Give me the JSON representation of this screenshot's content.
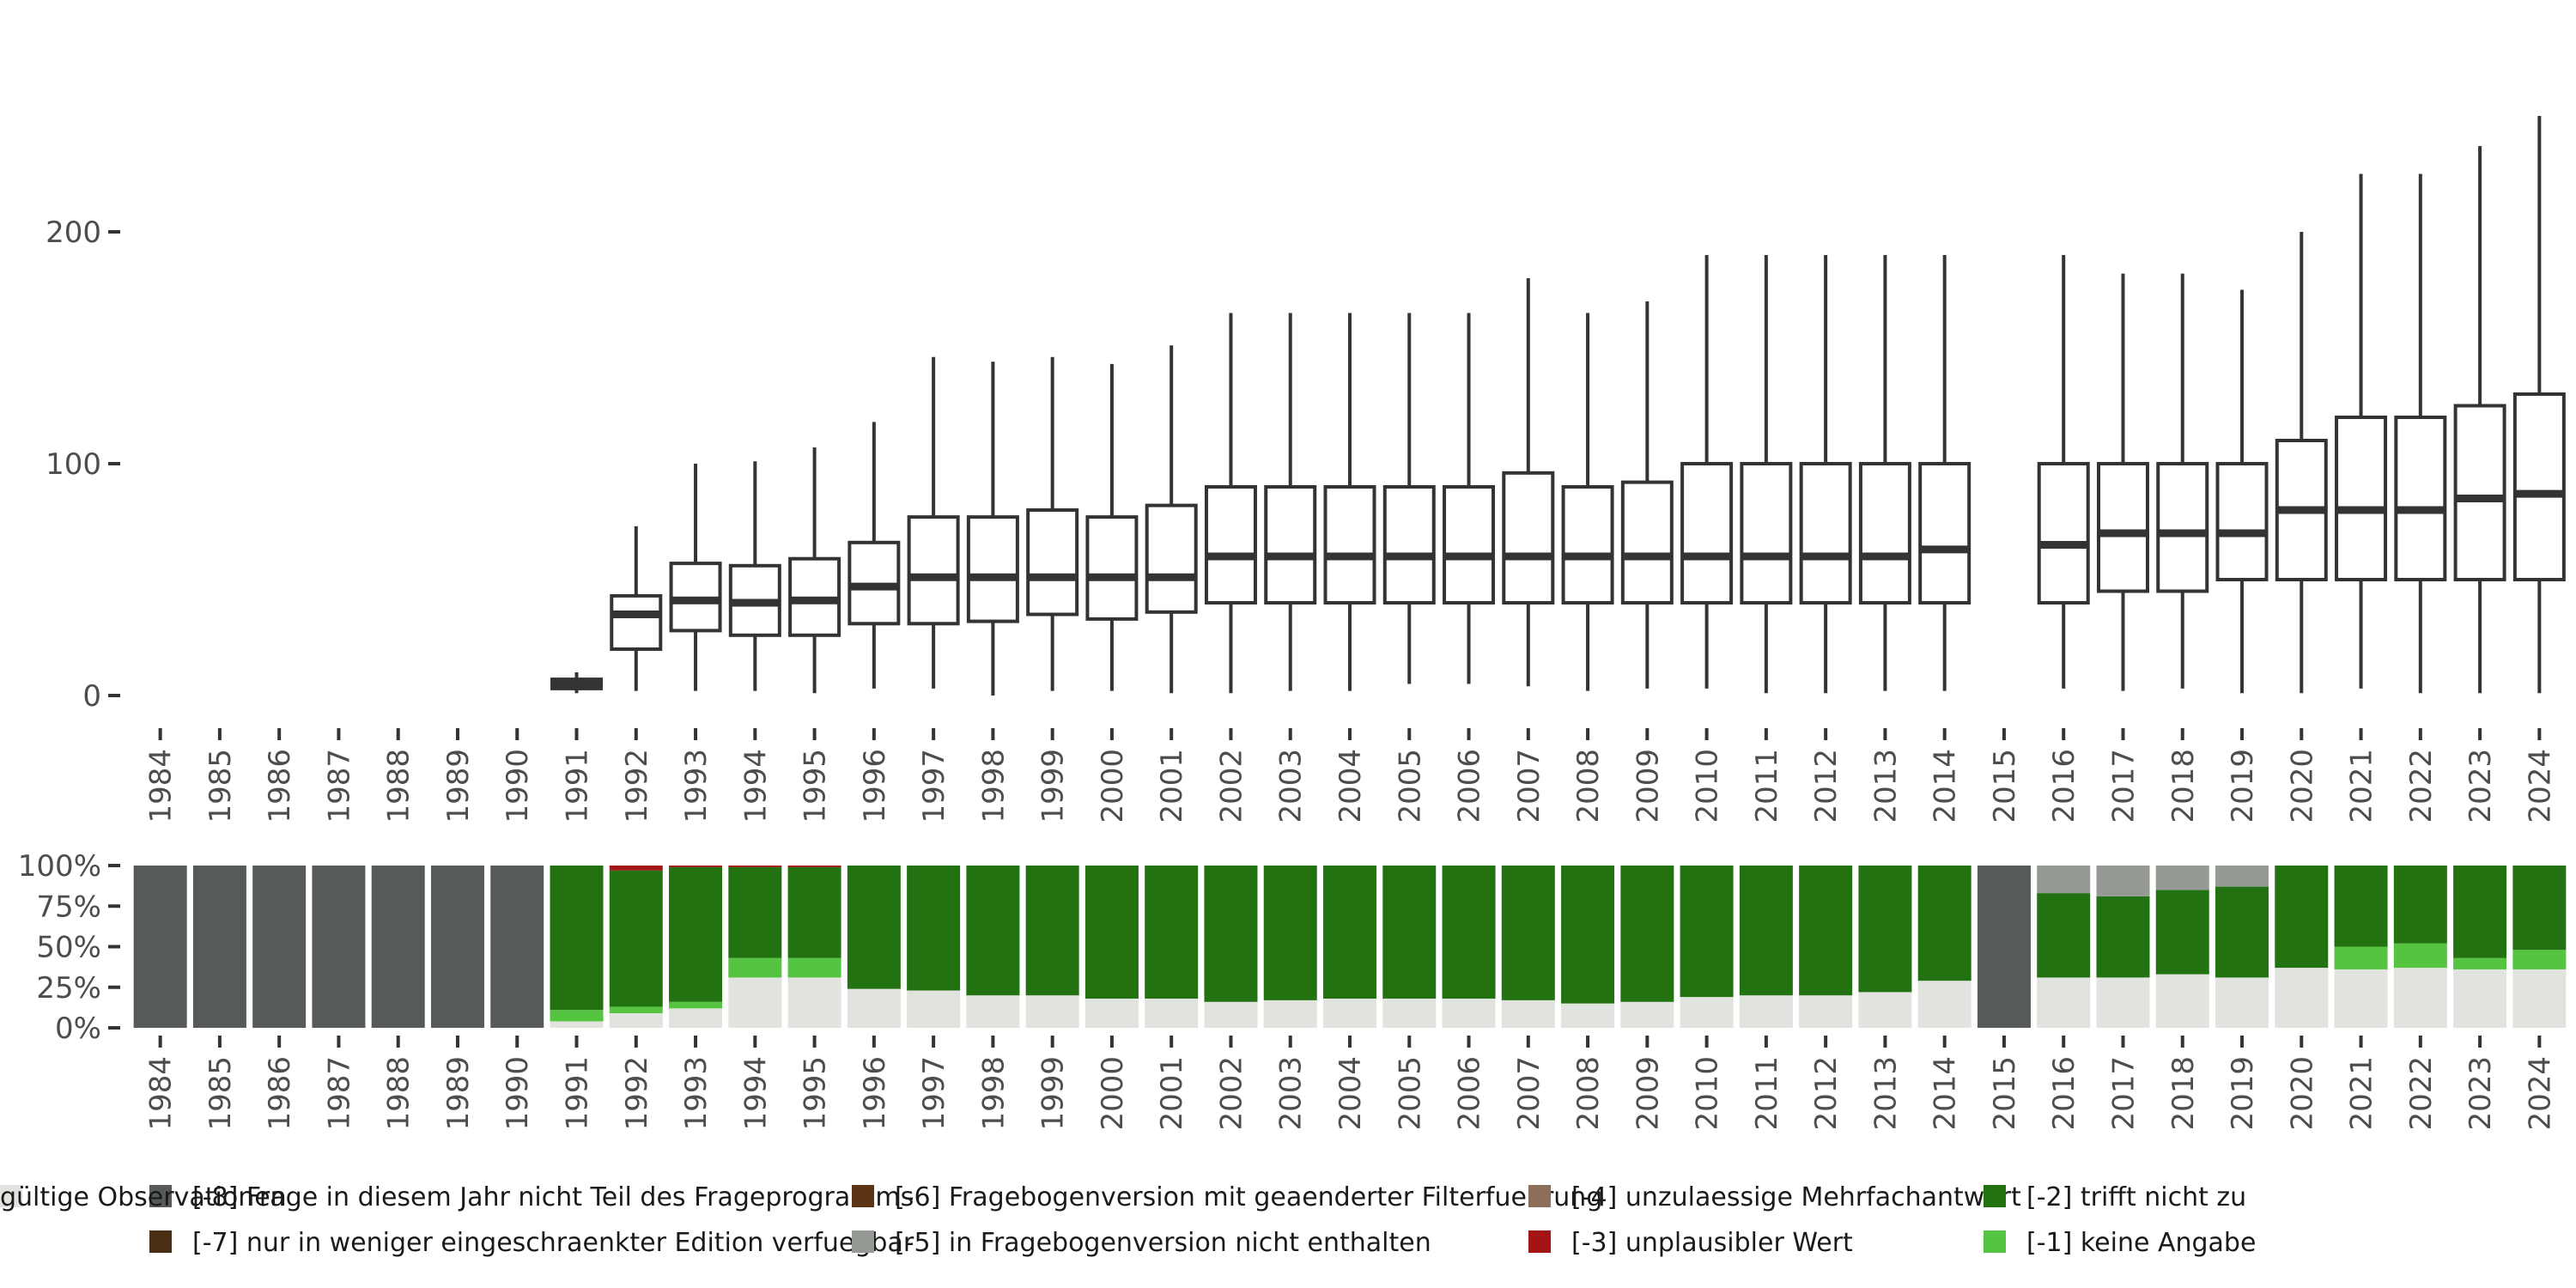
{
  "chart_data": [
    {
      "type": "boxplot",
      "title": "",
      "xlabel": "",
      "ylabel": "",
      "ylim": [
        0,
        250
      ],
      "y_ticks": [
        "0",
        "100",
        "200"
      ],
      "categories": [
        "1984",
        "1985",
        "1986",
        "1987",
        "1988",
        "1989",
        "1990",
        "1991",
        "1992",
        "1993",
        "1994",
        "1995",
        "1996",
        "1997",
        "1998",
        "1999",
        "2000",
        "2001",
        "2002",
        "2003",
        "2004",
        "2005",
        "2006",
        "2007",
        "2008",
        "2009",
        "2010",
        "2011",
        "2012",
        "2013",
        "2014",
        "2015",
        "2016",
        "2017",
        "2018",
        "2019",
        "2020",
        "2021",
        "2022",
        "2023",
        "2024"
      ],
      "boxes": [
        null,
        null,
        null,
        null,
        null,
        null,
        null,
        {
          "min": 1,
          "q1": 3,
          "median": 5,
          "q3": 7,
          "max": 10
        },
        {
          "min": 2,
          "q1": 20,
          "median": 35,
          "q3": 43,
          "max": 73
        },
        {
          "min": 2,
          "q1": 28,
          "median": 41,
          "q3": 57,
          "max": 100
        },
        {
          "min": 2,
          "q1": 26,
          "median": 40,
          "q3": 56,
          "max": 101
        },
        {
          "min": 1,
          "q1": 26,
          "median": 41,
          "q3": 59,
          "max": 107
        },
        {
          "min": 3,
          "q1": 31,
          "median": 47,
          "q3": 66,
          "max": 118
        },
        {
          "min": 3,
          "q1": 31,
          "median": 51,
          "q3": 77,
          "max": 146
        },
        {
          "min": 0,
          "q1": 32,
          "median": 51,
          "q3": 77,
          "max": 144
        },
        {
          "min": 2,
          "q1": 35,
          "median": 51,
          "q3": 80,
          "max": 146
        },
        {
          "min": 2,
          "q1": 33,
          "median": 51,
          "q3": 77,
          "max": 143
        },
        {
          "min": 1,
          "q1": 36,
          "median": 51,
          "q3": 82,
          "max": 151
        },
        {
          "min": 1,
          "q1": 40,
          "median": 60,
          "q3": 90,
          "max": 165
        },
        {
          "min": 2,
          "q1": 40,
          "median": 60,
          "q3": 90,
          "max": 165
        },
        {
          "min": 2,
          "q1": 40,
          "median": 60,
          "q3": 90,
          "max": 165
        },
        {
          "min": 5,
          "q1": 40,
          "median": 60,
          "q3": 90,
          "max": 165
        },
        {
          "min": 5,
          "q1": 40,
          "median": 60,
          "q3": 90,
          "max": 165
        },
        {
          "min": 4,
          "q1": 40,
          "median": 60,
          "q3": 96,
          "max": 180
        },
        {
          "min": 2,
          "q1": 40,
          "median": 60,
          "q3": 90,
          "max": 165
        },
        {
          "min": 3,
          "q1": 40,
          "median": 60,
          "q3": 92,
          "max": 170
        },
        {
          "min": 3,
          "q1": 40,
          "median": 60,
          "q3": 100,
          "max": 190
        },
        {
          "min": 1,
          "q1": 40,
          "median": 60,
          "q3": 100,
          "max": 190
        },
        {
          "min": 1,
          "q1": 40,
          "median": 60,
          "q3": 100,
          "max": 190
        },
        {
          "min": 2,
          "q1": 40,
          "median": 60,
          "q3": 100,
          "max": 190
        },
        {
          "min": 2,
          "q1": 40,
          "median": 63,
          "q3": 100,
          "max": 190
        },
        null,
        {
          "min": 3,
          "q1": 40,
          "median": 65,
          "q3": 100,
          "max": 190
        },
        {
          "min": 2,
          "q1": 45,
          "median": 70,
          "q3": 100,
          "max": 182
        },
        {
          "min": 3,
          "q1": 45,
          "median": 70,
          "q3": 100,
          "max": 182
        },
        {
          "min": 1,
          "q1": 50,
          "median": 70,
          "q3": 100,
          "max": 175
        },
        {
          "min": 1,
          "q1": 50,
          "median": 80,
          "q3": 110,
          "max": 200
        },
        {
          "min": 3,
          "q1": 50,
          "median": 80,
          "q3": 120,
          "max": 225
        },
        {
          "min": 1,
          "q1": 50,
          "median": 80,
          "q3": 120,
          "max": 225
        },
        {
          "min": 1,
          "q1": 50,
          "median": 85,
          "q3": 125,
          "max": 237
        },
        {
          "min": 1,
          "q1": 50,
          "median": 87,
          "q3": 130,
          "max": 250
        }
      ]
    },
    {
      "type": "stacked-bar",
      "title": "",
      "ylim": [
        0,
        100
      ],
      "y_ticks": [
        "0%",
        "25%",
        "50%",
        "75%",
        "100%"
      ],
      "categories": [
        "1984",
        "1985",
        "1986",
        "1987",
        "1988",
        "1989",
        "1990",
        "1991",
        "1992",
        "1993",
        "1994",
        "1995",
        "1996",
        "1997",
        "1998",
        "1999",
        "2000",
        "2001",
        "2002",
        "2003",
        "2004",
        "2005",
        "2006",
        "2007",
        "2008",
        "2009",
        "2010",
        "2011",
        "2012",
        "2013",
        "2014",
        "2015",
        "2016",
        "2017",
        "2018",
        "2019",
        "2020",
        "2021",
        "2022",
        "2023",
        "2024"
      ],
      "series": [
        {
          "name": "gültige Observationen",
          "color": "#e1e3df",
          "values": [
            0,
            0,
            0,
            0,
            0,
            0,
            0,
            4,
            9,
            12,
            31,
            31,
            24,
            23,
            20,
            20,
            18,
            18,
            16,
            17,
            18,
            18,
            18,
            17,
            15,
            16,
            19,
            20,
            20,
            22,
            29,
            0,
            31,
            31,
            33,
            31,
            37,
            36,
            37,
            36,
            36
          ]
        },
        {
          "name": "[-1] keine Angabe",
          "color": "#55c440",
          "values": [
            0,
            0,
            0,
            0,
            0,
            0,
            0,
            7,
            4,
            4,
            12,
            12,
            0,
            0,
            0,
            0,
            0,
            0,
            0,
            0,
            0,
            0,
            0,
            0,
            0,
            0,
            0,
            0,
            0,
            0,
            0,
            0,
            0,
            0,
            0,
            0,
            0,
            14,
            15,
            7,
            12
          ]
        },
        {
          "name": "[-2] trifft nicht zu",
          "color": "#237212",
          "values": [
            0,
            0,
            0,
            0,
            0,
            0,
            0,
            89,
            84,
            83,
            56,
            56,
            76,
            77,
            80,
            80,
            82,
            82,
            84,
            83,
            82,
            82,
            82,
            83,
            85,
            84,
            81,
            80,
            80,
            78,
            71,
            0,
            52,
            50,
            52,
            56,
            63,
            50,
            48,
            57,
            52
          ]
        },
        {
          "name": "[-3] unplausibler Wert",
          "color": "#a31515",
          "values": [
            0,
            0,
            0,
            0,
            0,
            0,
            0,
            0,
            3,
            1,
            1,
            1,
            0,
            0,
            0,
            0,
            0,
            0,
            0,
            0,
            0,
            0,
            0,
            0,
            0,
            0,
            0,
            0,
            0,
            0,
            0,
            0,
            0,
            0,
            0,
            0,
            0,
            0,
            0,
            0,
            0
          ]
        },
        {
          "name": "[-5] in Fragebogenversion nicht enthalten",
          "color": "#969a94",
          "values": [
            0,
            0,
            0,
            0,
            0,
            0,
            0,
            0,
            0,
            0,
            0,
            0,
            0,
            0,
            0,
            0,
            0,
            0,
            0,
            0,
            0,
            0,
            0,
            0,
            0,
            0,
            0,
            0,
            0,
            0,
            0,
            0,
            17,
            19,
            15,
            13,
            0,
            0,
            0,
            0,
            0
          ]
        },
        {
          "name": "[-8] Frage in diesem Jahr nicht Teil des Frageprogramms",
          "color": "#575b57",
          "values": [
            100,
            100,
            100,
            100,
            100,
            100,
            100,
            0,
            0,
            0,
            0,
            0,
            0,
            0,
            0,
            0,
            0,
            0,
            0,
            0,
            0,
            0,
            0,
            0,
            0,
            0,
            0,
            0,
            0,
            0,
            0,
            100,
            0,
            0,
            0,
            0,
            0,
            0,
            0,
            0,
            0
          ]
        }
      ]
    }
  ],
  "legend": [
    {
      "label": "[-8] Frage in diesem Jahr nicht Teil des Frageprogramms",
      "color": "#575b57"
    },
    {
      "label": "[-7] nur in weniger eingeschraenkter Edition verfuegbar",
      "color": "#4a2e14"
    },
    {
      "label": "[-6] Fragebogenversion mit geaenderter Filterfuehrung",
      "color": "#5b3515"
    },
    {
      "label": "[-5] in Fragebogenversion nicht enthalten",
      "color": "#969a94"
    },
    {
      "label": "[-4] unzulaessige Mehrfachantwort",
      "color": "#8c6e5a"
    },
    {
      "label": "[-3] unplausibler Wert",
      "color": "#a31515"
    },
    {
      "label": "[-2] trifft nicht zu",
      "color": "#237212"
    },
    {
      "label": "[-1] keine Angabe",
      "color": "#55c440"
    },
    {
      "label": "gültige Observationen",
      "color": "#e1e3df"
    }
  ]
}
